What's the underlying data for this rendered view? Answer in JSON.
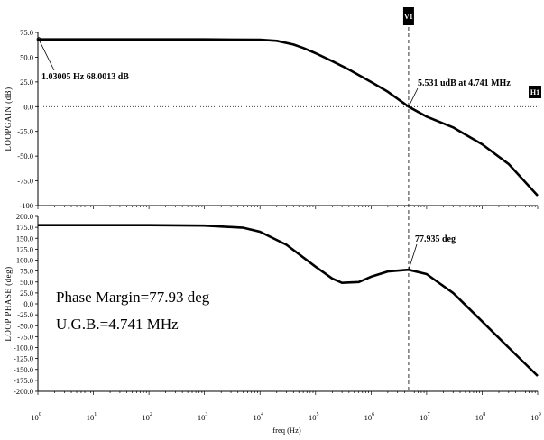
{
  "chart_data": [
    {
      "type": "line",
      "title": "",
      "xlabel": "",
      "ylabel": "LOOPGAIN (dB)",
      "xscale": "log",
      "xlim": [
        1,
        1000000000
      ],
      "ylim": [
        -100,
        75
      ],
      "y_ticks": [
        "75.0",
        "50.0",
        "25.0",
        "0.0",
        "-25.0",
        "-50.0",
        "-75.0",
        "-100"
      ],
      "series": [
        {
          "x": [
            1,
            10,
            100,
            1000,
            10000,
            20000,
            40000,
            60000,
            100000,
            200000,
            400000,
            1000000,
            2000000,
            4741000,
            10000000,
            30000000,
            100000000,
            300000000,
            1000000000
          ],
          "y": [
            68.0,
            68.0,
            68.0,
            68.0,
            67.6,
            66.5,
            62.8,
            59.3,
            54.0,
            46.0,
            37.5,
            25.0,
            15.0,
            0.0,
            -10.0,
            -21.0,
            -38.0,
            -58.0,
            -90.0
          ]
        }
      ],
      "annotations": [
        "1.03005 Hz 68.0013 dB",
        "5.531 udB at 4.741 MHz"
      ],
      "cursor_labels": [
        "H1"
      ]
    },
    {
      "type": "line",
      "title": "",
      "xlabel": "freq (Hz)",
      "ylabel": "LOOP PHASE (deg)",
      "xscale": "log",
      "xlim": [
        1,
        1000000000
      ],
      "ylim": [
        -200,
        200
      ],
      "x_ticks": [
        "0",
        "1",
        "2",
        "3",
        "4",
        "5",
        "6",
        "7",
        "8",
        "9"
      ],
      "y_ticks": [
        "200.0",
        "175.0",
        "150.0",
        "125.0",
        "100.0",
        "75.0",
        "50.0",
        "25.0",
        "0.0",
        "-25.0",
        "-50.0",
        "-75.0",
        "-100.0",
        "-125.0",
        "-150.0",
        "-175.0",
        "-200.0"
      ],
      "series": [
        {
          "x": [
            1,
            100,
            1000,
            5000,
            10000,
            30000,
            100000,
            200000,
            300000,
            600000,
            1000000,
            2000000,
            4741000,
            10000000,
            30000000,
            100000000,
            300000000,
            1000000000
          ],
          "y": [
            180,
            180,
            179,
            174,
            165,
            135,
            85,
            58,
            48,
            50,
            62,
            74,
            78,
            68,
            25,
            -40,
            -100,
            -165
          ]
        }
      ],
      "annotations": [
        "77.935 deg"
      ],
      "notes": [
        "Phase  Margin=77.93 deg",
        "U.G.B.=4.741 MHz"
      ]
    }
  ],
  "cursor": {
    "label": "V1",
    "x": 4741000
  }
}
